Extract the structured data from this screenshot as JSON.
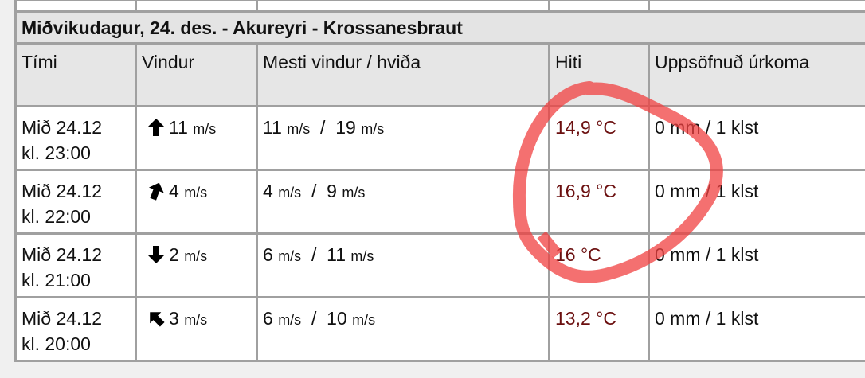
{
  "title": "Miðvikudagur, 24. des. - Akureyri - Krossanesbraut",
  "headers": [
    "Tími",
    "Vindur",
    "Mesti vindur / hviða",
    "Hiti",
    "Uppsöfnuð úrkoma"
  ],
  "unit": "m/s",
  "rows": [
    {
      "day": "Mið 24.12",
      "time": "kl. 23:00",
      "wind": "11",
      "wind_direction_deg": 0,
      "max_wind": "11",
      "gust": "19",
      "temp": "14,9 °C",
      "precip": "0 mm / 1 klst"
    },
    {
      "day": "Mið 24.12",
      "time": "kl. 22:00",
      "wind": "4",
      "wind_direction_deg": 20,
      "max_wind": "4",
      "gust": "9",
      "temp": "16,9 °C",
      "precip": "0 mm / 1 klst"
    },
    {
      "day": "Mið 24.12",
      "time": "kl. 21:00",
      "wind": "2",
      "wind_direction_deg": 180,
      "max_wind": "6",
      "gust": "11",
      "temp": "16 °C",
      "precip": "0 mm / 1 klst"
    },
    {
      "day": "Mið 24.12",
      "time": "kl. 20:00",
      "wind": "3",
      "wind_direction_deg": -45,
      "max_wind": "6",
      "gust": "10",
      "temp": "13,2 °C",
      "precip": "0 mm / 1 klst"
    }
  ],
  "colors": {
    "temp": "#6b0f0f",
    "annotation": "#f04040",
    "header_bg": "#e6e6e6"
  }
}
